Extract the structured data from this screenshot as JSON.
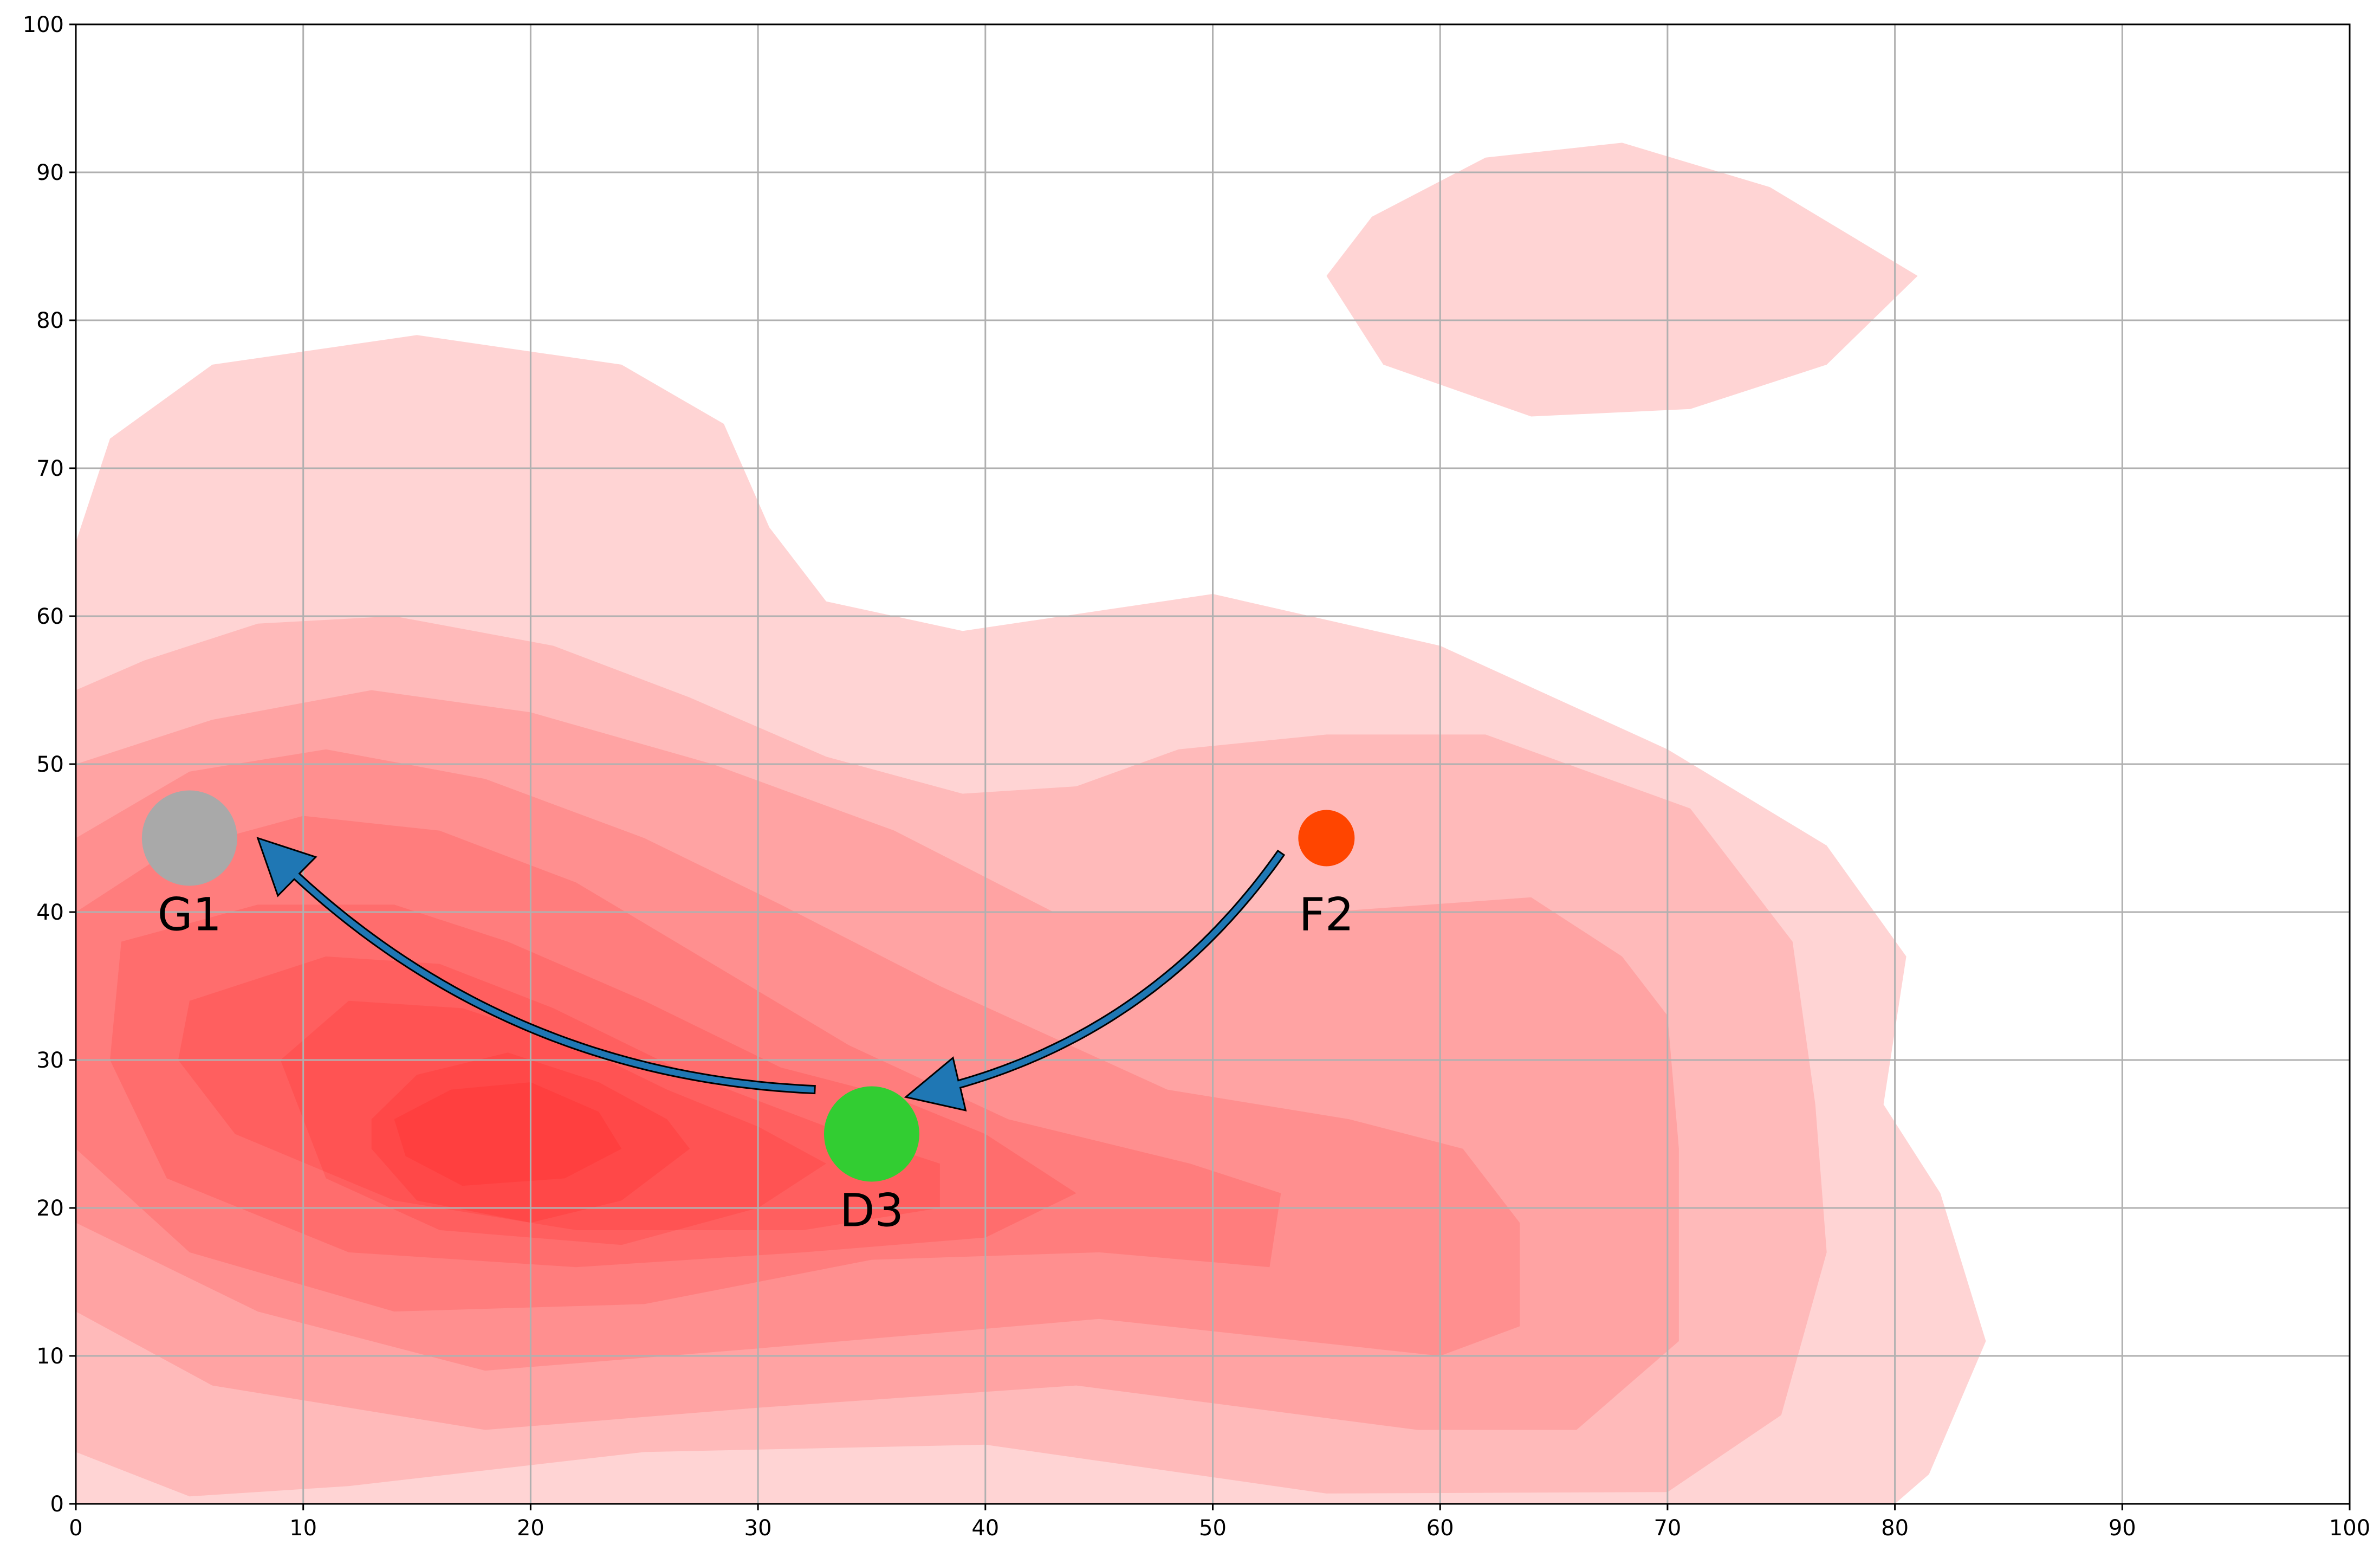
{
  "chart_data": {
    "type": "scatter",
    "title": "",
    "xlabel": "",
    "ylabel": "",
    "xlim": [
      0,
      100
    ],
    "ylim": [
      0,
      100
    ],
    "x_ticks": [
      "0",
      "10",
      "20",
      "30",
      "40",
      "50",
      "60",
      "70",
      "80",
      "90",
      "100"
    ],
    "y_ticks": [
      "0",
      "10",
      "20",
      "30",
      "40",
      "50",
      "60",
      "70",
      "80",
      "90",
      "100"
    ],
    "grid": true,
    "points": [
      {
        "label": "G1",
        "x": 5,
        "y": 45,
        "color": "#a9a9a9",
        "size": "large"
      },
      {
        "label": "F2",
        "x": 55,
        "y": 45,
        "color": "#ff4500",
        "size": "small"
      },
      {
        "label": "D3",
        "x": 35,
        "y": 25,
        "color": "#32cd32",
        "size": "large"
      }
    ],
    "arrows": [
      {
        "from": [
          32.5,
          28
        ],
        "to": [
          8,
          45
        ],
        "color": "#1f77b4"
      },
      {
        "from": [
          53,
          44
        ],
        "to": [
          36.5,
          27.5
        ],
        "color": "#1f77b4"
      }
    ],
    "density_background": {
      "kind": "kde-contour",
      "color": "#ff0000",
      "peak": [
        20,
        25
      ],
      "secondary_mode": [
        68,
        83
      ]
    }
  }
}
